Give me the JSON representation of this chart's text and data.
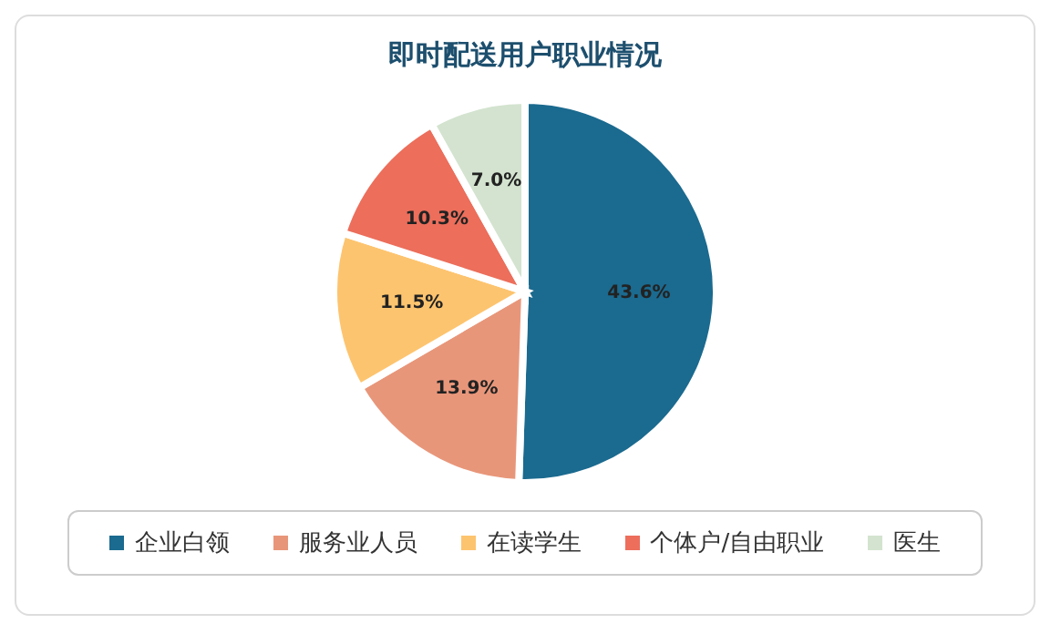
{
  "chart_data": {
    "type": "pie",
    "title": "即时配送用户职业情况",
    "categories": [
      "企业白领",
      "服务业人员",
      "在读学生",
      "个体户/自由职业",
      "医生"
    ],
    "values": [
      43.6,
      13.9,
      11.5,
      10.3,
      7.0
    ],
    "value_labels": [
      "43.6%",
      "13.9%",
      "11.5%",
      "10.3%",
      "7.0%"
    ],
    "colors": [
      "#1b6a8f",
      "#e8967a",
      "#fdc46f",
      "#ec6e5b",
      "#d3e3cf"
    ],
    "legend": "bottom"
  }
}
